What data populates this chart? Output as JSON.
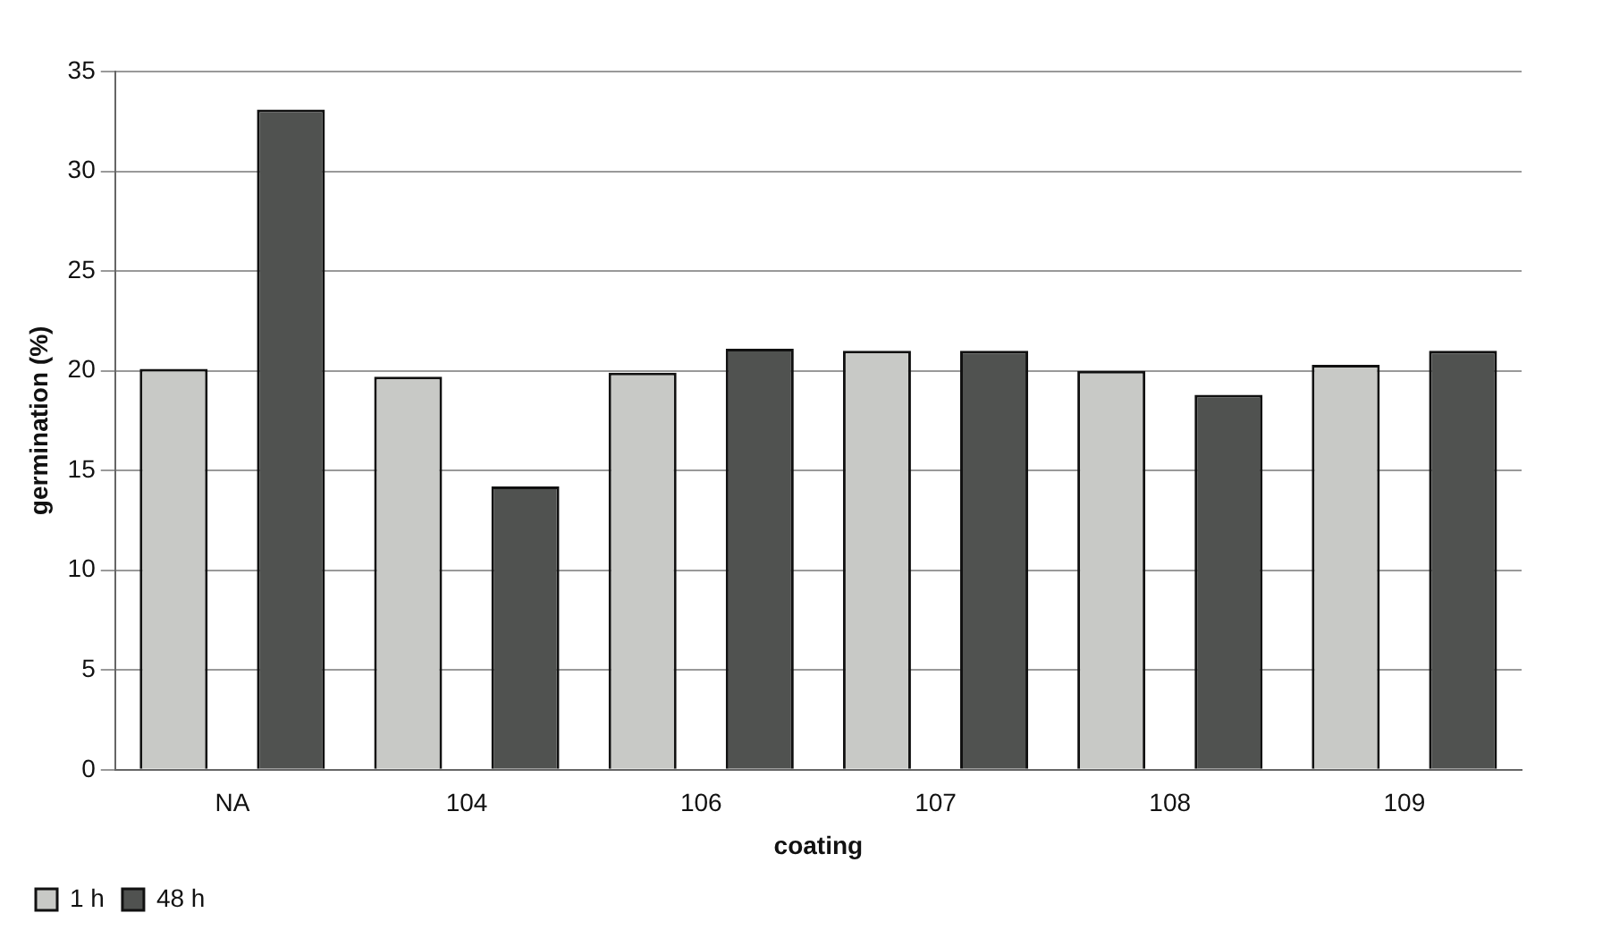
{
  "chart_data": {
    "type": "bar",
    "xlabel": "coating",
    "ylabel": "germination (%)",
    "categories": [
      "NA",
      "104",
      "106",
      "107",
      "108",
      "109"
    ],
    "series": [
      {
        "name": "1 h",
        "color": "#c8c9c6",
        "values": [
          20.1,
          19.7,
          19.9,
          21.0,
          20.0,
          20.3
        ]
      },
      {
        "name": "48 h",
        "color": "#505250",
        "values": [
          33.1,
          14.2,
          21.1,
          21.0,
          18.8,
          21.0
        ]
      }
    ],
    "ylim": [
      0,
      35
    ],
    "yticks": [
      0,
      5,
      10,
      15,
      20,
      25,
      30,
      35
    ],
    "grid": "y",
    "legend": "bottom left"
  }
}
